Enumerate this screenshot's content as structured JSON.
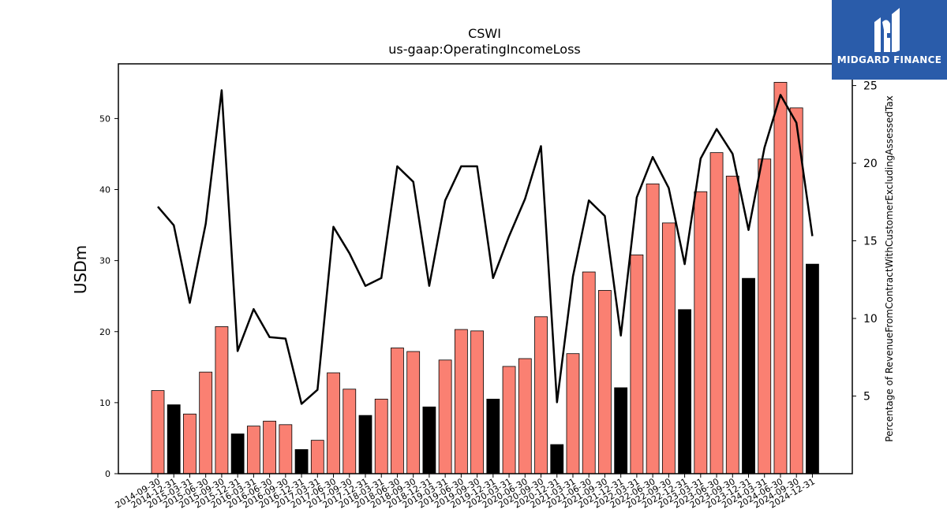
{
  "chart_data": {
    "type": "bar+line",
    "title": "CSWI",
    "subtitle": "us-gaap:OperatingIncomeLoss",
    "ylabel": "USDm",
    "ylabel_right": "Percentage of RevenueFromContractWithCustomerExcludingAssessedTax",
    "ylim": [
      0,
      57.7
    ],
    "ylim_right": [
      0,
      26.4
    ],
    "yticks": [
      0,
      10,
      20,
      30,
      40,
      50
    ],
    "yticks_right": [
      5,
      10,
      15,
      20,
      25
    ],
    "categories": [
      "2014-09-30",
      "2014-12-31",
      "2015-03-31",
      "2015-06-30",
      "2015-09-30",
      "2015-12-31",
      "2016-03-31",
      "2016-06-30",
      "2016-09-30",
      "2016-12-31",
      "2017-03-31",
      "2017-06-30",
      "2017-09-30",
      "2017-12-31",
      "2018-03-31",
      "2018-06-30",
      "2018-09-30",
      "2018-12-31",
      "2019-03-31",
      "2019-06-30",
      "2019-09-30",
      "2019-12-31",
      "2020-03-31",
      "2020-06-30",
      "2020-09-30",
      "2020-12-31",
      "2021-03-31",
      "2021-06-30",
      "2021-09-30",
      "2021-12-31",
      "2022-03-31",
      "2022-06-30",
      "2022-09-30",
      "2022-12-31",
      "2023-03-31",
      "2023-06-30",
      "2023-09-30",
      "2023-12-31",
      "2024-03-31",
      "2024-06-30",
      "2024-09-30",
      "2024-12-31"
    ],
    "series": [
      {
        "type": "bar",
        "values": [
          11.7,
          9.7,
          8.4,
          14.3,
          20.7,
          5.6,
          6.7,
          7.4,
          6.9,
          3.4,
          4.7,
          14.2,
          11.9,
          8.2,
          10.5,
          17.7,
          17.2,
          9.4,
          16.0,
          20.3,
          20.1,
          10.5,
          15.1,
          16.2,
          22.1,
          4.1,
          16.9,
          28.4,
          25.8,
          12.1,
          30.8,
          40.8,
          35.3,
          23.1,
          39.7,
          45.2,
          41.9,
          27.5,
          44.3,
          55.1,
          51.5,
          29.5
        ],
        "colors": [
          "#fa8072",
          "#000000",
          "#fa8072",
          "#fa8072",
          "#fa8072",
          "#000000",
          "#fa8072",
          "#fa8072",
          "#fa8072",
          "#000000",
          "#fa8072",
          "#fa8072",
          "#fa8072",
          "#000000",
          "#fa8072",
          "#fa8072",
          "#fa8072",
          "#000000",
          "#fa8072",
          "#fa8072",
          "#fa8072",
          "#000000",
          "#fa8072",
          "#fa8072",
          "#fa8072",
          "#000000",
          "#fa8072",
          "#fa8072",
          "#fa8072",
          "#000000",
          "#fa8072",
          "#fa8072",
          "#fa8072",
          "#000000",
          "#fa8072",
          "#fa8072",
          "#fa8072",
          "#000000",
          "#fa8072",
          "#fa8072",
          "#fa8072",
          "#000000"
        ]
      },
      {
        "type": "line",
        "axis": "right",
        "color": "#000000",
        "values": [
          17.2,
          16.0,
          11.0,
          16.1,
          24.7,
          7.9,
          10.6,
          8.8,
          8.7,
          4.5,
          5.4,
          15.9,
          14.2,
          12.1,
          12.6,
          19.8,
          18.8,
          12.1,
          17.6,
          19.8,
          19.8,
          12.6,
          15.3,
          17.7,
          21.1,
          4.6,
          12.7,
          17.6,
          16.6,
          8.9,
          17.8,
          20.4,
          18.4,
          13.5,
          20.3,
          22.2,
          20.6,
          15.7,
          21.0,
          24.4,
          22.6,
          15.3
        ]
      }
    ],
    "colors": {
      "positive": "#fa8072",
      "year_end": "#000000",
      "line": "#000000"
    }
  },
  "logo": {
    "text": "MIDGARD FINANCE",
    "background": "#2a5caa"
  }
}
